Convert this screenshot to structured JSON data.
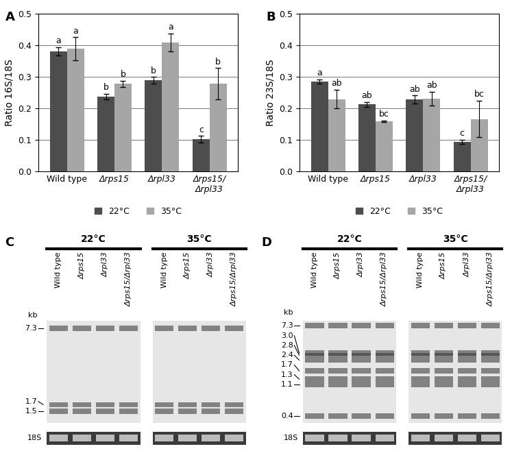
{
  "chart_data": [
    {
      "type": "bar",
      "panel": "A",
      "ylabel": "Ratio 16S/18S",
      "categories": [
        "Wild type",
        "Δrps15",
        "Δrpl33",
        "Δrps15/Δrpl33"
      ],
      "ylim": [
        0,
        0.5
      ],
      "yticks": [
        0.0,
        0.1,
        0.2,
        0.3,
        0.4,
        0.5
      ],
      "grid": true,
      "legend": "lower center",
      "series": [
        {
          "name": "22°C",
          "color": "#4d4d4d",
          "values": [
            0.38,
            0.237,
            0.289,
            0.102
          ],
          "errors": [
            0.013,
            0.008,
            0.01,
            0.01
          ],
          "letters": [
            "a",
            "b",
            "b",
            "c"
          ]
        },
        {
          "name": "35°C",
          "color": "#a6a6a6",
          "values": [
            0.388,
            0.277,
            0.408,
            0.277
          ],
          "errors": [
            0.037,
            0.01,
            0.028,
            0.05
          ],
          "letters": [
            "a",
            "b",
            "a",
            "b"
          ]
        }
      ]
    },
    {
      "type": "bar",
      "panel": "B",
      "ylabel": "Ratio 23S/18S",
      "categories": [
        "Wild type",
        "Δrps15",
        "Δrpl33",
        "Δrps15/Δrpl33"
      ],
      "ylim": [
        0,
        0.5
      ],
      "yticks": [
        0.0,
        0.1,
        0.2,
        0.3,
        0.4,
        0.5
      ],
      "grid": true,
      "legend": "lower center",
      "series": [
        {
          "name": "22°C",
          "color": "#4d4d4d",
          "values": [
            0.284,
            0.212,
            0.228,
            0.093
          ],
          "errors": [
            0.007,
            0.007,
            0.012,
            0.007
          ],
          "letters": [
            "a",
            "ab",
            "ab",
            "c"
          ]
        },
        {
          "name": "35°C",
          "color": "#a6a6a6",
          "values": [
            0.229,
            0.159,
            0.231,
            0.166
          ],
          "errors": [
            0.03,
            0.002,
            0.022,
            0.058
          ],
          "letters": [
            "ab",
            "bc",
            "ab",
            "bc"
          ]
        }
      ]
    }
  ],
  "blots": [
    {
      "panel": "C",
      "groups": [
        "22°C",
        "35°C"
      ],
      "lanes": [
        "Wild type",
        "Δrps15",
        "Δrpl33",
        "Δrps15/Δrpl33"
      ],
      "size_label": "kb",
      "markers": [
        7.3,
        1.7,
        1.5
      ],
      "loading_control": "18S"
    },
    {
      "panel": "D",
      "groups": [
        "22°C",
        "35°C"
      ],
      "lanes": [
        "Wild type",
        "Δrps15",
        "Δrpl33",
        "Δrps15/Δrpl33"
      ],
      "size_label": "kb",
      "markers": [
        7.3,
        3.0,
        2.8,
        2.4,
        1.7,
        1.3,
        1.1,
        0.4
      ],
      "loading_control": "18S"
    }
  ]
}
